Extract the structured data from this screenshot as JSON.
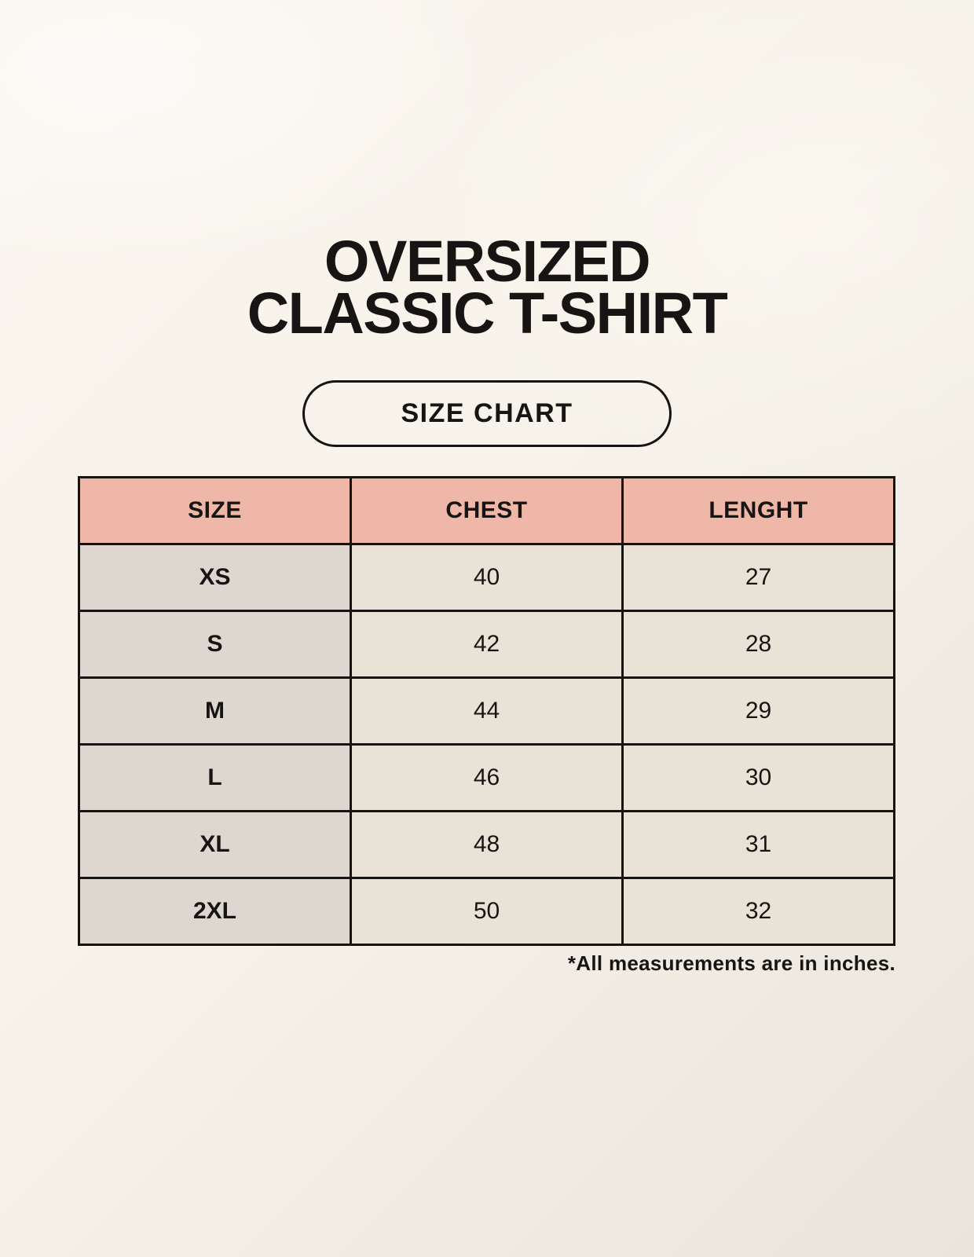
{
  "header": {
    "title_line1": "OVERSIZED",
    "title_line2": "CLASSIC T-SHIRT"
  },
  "badge": {
    "label": "SIZE CHART"
  },
  "footnote": "*All measurements are in inches.",
  "colors": {
    "background": "#f7f3ea",
    "header_size_bg": "#d8d2cb",
    "header_measure_bg": "#efb7a7",
    "row_size_bg": "#ddd7d0",
    "row_value_bg": "#e9e2d6",
    "border": "#161412",
    "text": "#171513"
  },
  "chart_data": {
    "type": "table",
    "title": "OVERSIZED CLASSIC T-SHIRT",
    "subtitle": "SIZE CHART",
    "columns": [
      "SIZE",
      "CHEST",
      "LENGHT"
    ],
    "rows": [
      [
        "XS",
        "40",
        "27"
      ],
      [
        "S",
        "42",
        "28"
      ],
      [
        "M",
        "44",
        "29"
      ],
      [
        "L",
        "46",
        "30"
      ],
      [
        "XL",
        "48",
        "31"
      ],
      [
        "2XL",
        "50",
        "32"
      ]
    ],
    "units": "inches",
    "note": "*All measurements are in inches."
  }
}
